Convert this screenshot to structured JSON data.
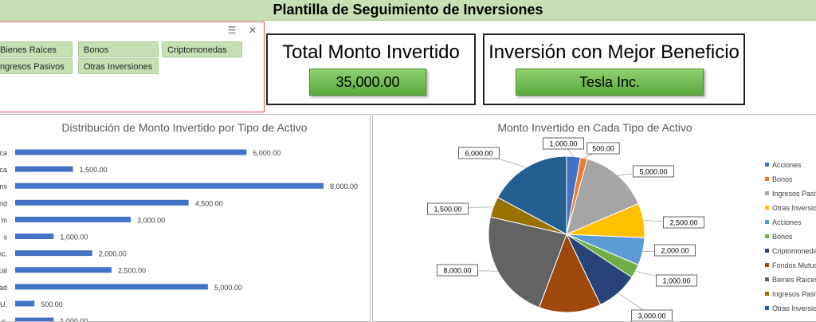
{
  "header": {
    "title": "Plantilla de Seguimiento de Inversiones"
  },
  "slicer": {
    "items": [
      "Bienes Raíces",
      "Bonos",
      "Criptomonedas",
      "ngresos Pasivos",
      "Otras Inversiones"
    ],
    "icons": [
      "multi-select-icon",
      "clear-filter-icon"
    ]
  },
  "kpis": {
    "total": {
      "label": "Total Monto Invertido",
      "value": "35,000.00"
    },
    "best": {
      "label": "Inversión con Mejor Beneficio",
      "value": "Tesla Inc."
    }
  },
  "colors": {
    "title_bar": "#c6e0b4",
    "chip": "#c6e0b4",
    "kpi_button": "#70b84c",
    "bar": "#4472c4"
  },
  "chart_data": [
    {
      "type": "bar",
      "orientation": "horizontal",
      "title": "Distribución de Monto Invertido por Tipo de Activo",
      "categories": [
        "ca",
        "ca",
        "mi",
        "nd",
        "m",
        "s",
        "nc.",
        "cal",
        "ad",
        "U.",
        "c."
      ],
      "values": [
        6000,
        1500,
        8000,
        4500,
        3000,
        1000,
        2000,
        2500,
        5000,
        500,
        1000
      ],
      "labels": [
        "6,000.00",
        "1,500.00",
        "8,000.00",
        "4,500.00",
        "3,000.00",
        "1,000.00",
        "2,000.00",
        "2,500.00",
        "5,000.00",
        "500.00",
        "1,000.00"
      ],
      "xlim": [
        0,
        8500
      ]
    },
    {
      "type": "pie",
      "title": "Monto Invertido en Cada Tipo de Activo",
      "legend": "right",
      "slices": [
        {
          "name": "Acciones",
          "value": 1000,
          "label": "1,000.00",
          "color": "#4472c4"
        },
        {
          "name": "Bonos",
          "value": 500,
          "label": "500.00",
          "color": "#ed7d31"
        },
        {
          "name": "Ingresos Pasivos",
          "value": 5000,
          "label": "5,000.00",
          "color": "#a5a5a5"
        },
        {
          "name": "Otras Inversiones",
          "value": 2500,
          "label": "2,500.00",
          "color": "#ffc000"
        },
        {
          "name": "Acciones",
          "value": 2000,
          "label": "2,000.00",
          "color": "#5b9bd5"
        },
        {
          "name": "Bonos",
          "value": 1000,
          "label": "1,000.00",
          "color": "#70ad47"
        },
        {
          "name": "Criptomonedas",
          "value": 3000,
          "label": "3,000.00",
          "color": "#264478"
        },
        {
          "name": "Fondos Mutuos",
          "value": 4500,
          "label": "",
          "color": "#9e480e"
        },
        {
          "name": "Bienes Raíces",
          "value": 8000,
          "label": "8,000.00",
          "color": "#636363"
        },
        {
          "name": "Ingresos Pasivos",
          "value": 1500,
          "label": "1,500.00",
          "color": "#997300"
        },
        {
          "name": "Otras Inversiones",
          "value": 6000,
          "label": "6,000.00",
          "color": "#255e91"
        }
      ]
    }
  ]
}
